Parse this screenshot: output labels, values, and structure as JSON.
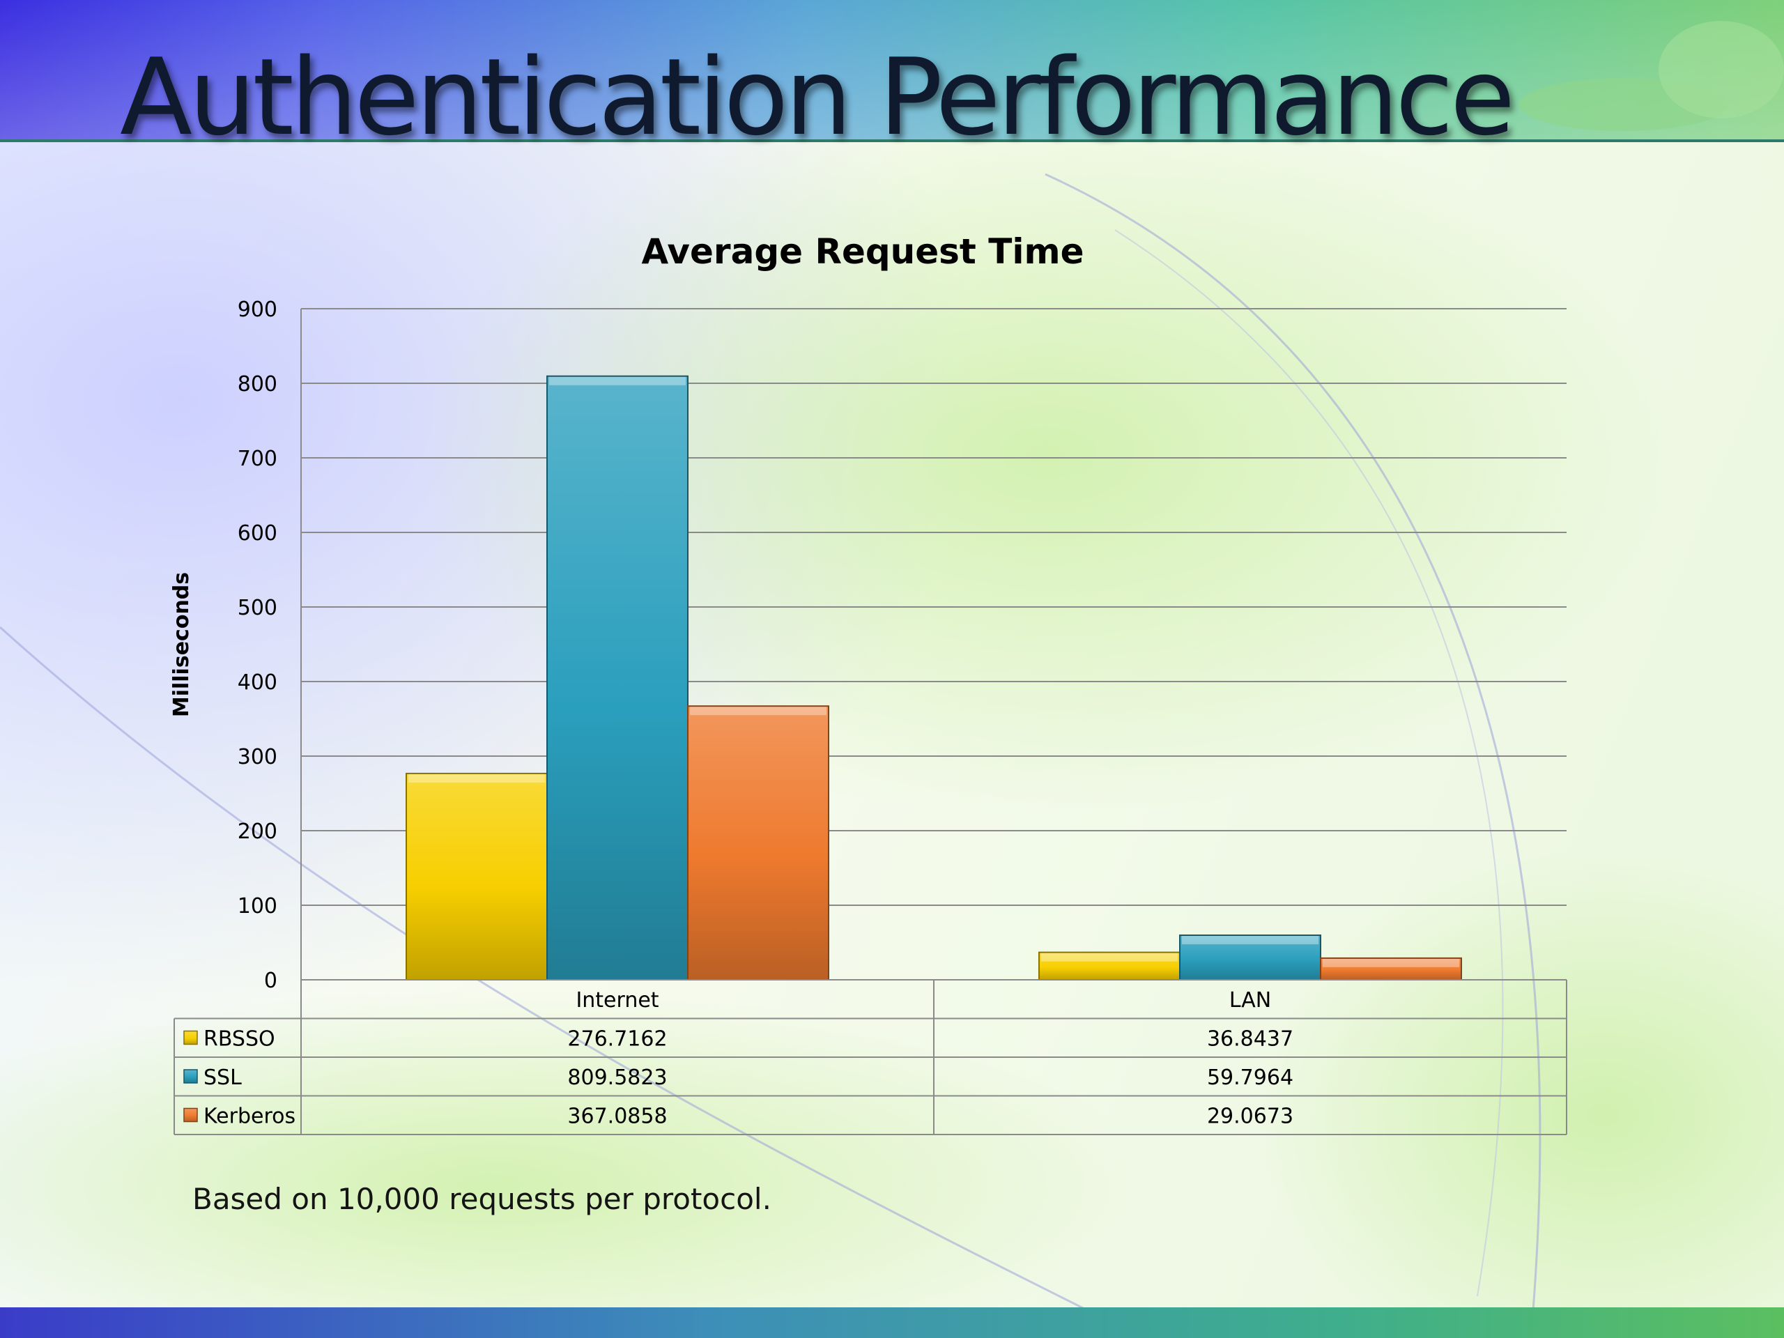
{
  "slide": {
    "title": "Authentication Performance",
    "footnote": "Based on 10,000 requests per protocol."
  },
  "chart_data": {
    "type": "bar",
    "title": "Average Request Time",
    "xlabel": "",
    "ylabel": "Milliseconds",
    "ylim": [
      0,
      900
    ],
    "yticks": [
      0,
      100,
      200,
      300,
      400,
      500,
      600,
      700,
      800,
      900
    ],
    "grid": true,
    "legend": "data-table",
    "categories": [
      "Internet",
      "LAN"
    ],
    "series": [
      {
        "name": "RBSSO",
        "color": "#f7cf00",
        "values": [
          276.7162,
          36.8437
        ],
        "labels": [
          "276.7162",
          "36.8437"
        ]
      },
      {
        "name": "SSL",
        "color": "#2a9fbd",
        "values": [
          809.5823,
          59.7964
        ],
        "labels": [
          "809.5823",
          "59.7964"
        ]
      },
      {
        "name": "Kerberos",
        "color": "#ee7a2e",
        "values": [
          367.0858,
          29.0673
        ],
        "labels": [
          "367.0858",
          "29.0673"
        ]
      }
    ]
  }
}
